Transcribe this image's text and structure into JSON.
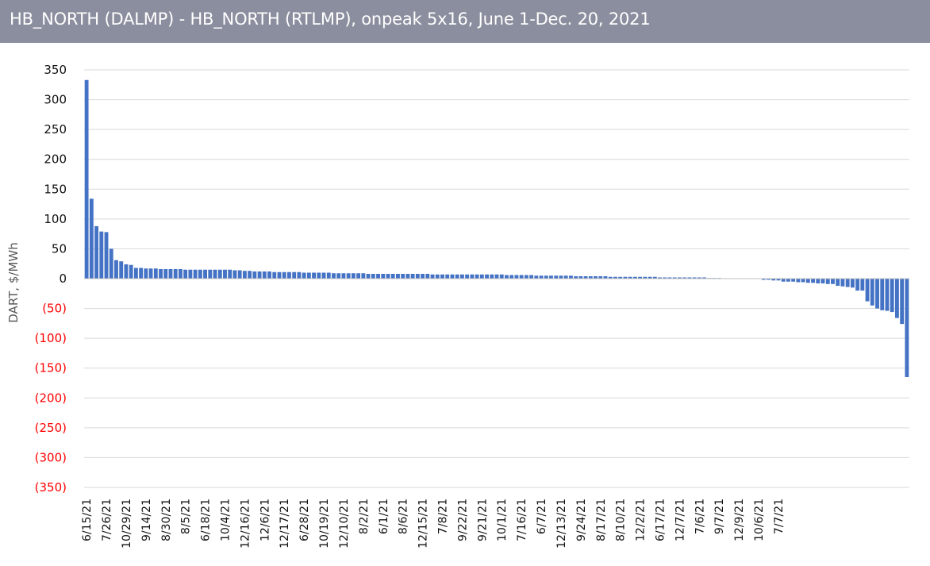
{
  "title": "HB_NORTH (DALMP) - HB_NORTH (RTLMP), onpeak 5x16, June 1-Dec. 20, 2021",
  "colors": {
    "title_bg": "#8b8e9e",
    "title_text": "#ffffff",
    "bar": "#4472c4",
    "negative_tick": "#ff0000",
    "positive_tick": "#111111",
    "grid": "#d9d9d9"
  },
  "chart_data": {
    "type": "bar",
    "title": "HB_NORTH (DALMP) - HB_NORTH (RTLMP), onpeak 5x16, June 1-Dec. 20, 2021",
    "ylabel": "DART, $/MWh",
    "xlabel": "",
    "ylim": [
      -350,
      350
    ],
    "grid": true,
    "legend": "none",
    "y_ticks": [
      350,
      300,
      250,
      200,
      150,
      100,
      50,
      0,
      -50,
      -100,
      -150,
      -200,
      -250,
      -300,
      -350
    ],
    "y_tick_labels": [
      "350",
      "300",
      "250",
      "200",
      "150",
      "100",
      "50",
      "0",
      "(50)",
      "(100)",
      "(150)",
      "(200)",
      "(250)",
      "(300)",
      "(350)"
    ],
    "x_tick_labels": [
      "6/15/21",
      "7/26/21",
      "10/29/21",
      "9/14/21",
      "8/30/21",
      "8/5/21",
      "6/18/21",
      "10/4/21",
      "12/16/21",
      "12/6/21",
      "12/17/21",
      "6/28/21",
      "10/19/21",
      "12/10/21",
      "8/2/21",
      "6/1/21",
      "8/6/21",
      "12/15/21",
      "7/8/21",
      "9/22/21",
      "9/21/21",
      "10/1/21",
      "7/16/21",
      "6/7/21",
      "12/13/21",
      "9/24/21",
      "8/17/21",
      "8/10/21",
      "12/2/21",
      "6/17/21",
      "12/7/21",
      "7/6/21",
      "9/7/21",
      "12/9/21",
      "10/6/21",
      "7/7/21"
    ],
    "x_tick_interval": 4,
    "values": [
      333,
      134,
      88,
      79,
      78,
      50,
      31,
      29,
      24,
      23,
      18,
      18,
      17,
      17,
      17,
      16,
      16,
      16,
      16,
      16,
      15,
      15,
      15,
      15,
      15,
      15,
      15,
      15,
      15,
      15,
      14,
      14,
      13,
      13,
      12,
      12,
      12,
      12,
      11,
      11,
      11,
      11,
      11,
      11,
      10,
      10,
      10,
      10,
      10,
      10,
      9,
      9,
      9,
      9,
      9,
      9,
      9,
      8,
      8,
      8,
      8,
      8,
      8,
      8,
      8,
      8,
      8,
      8,
      8,
      8,
      7,
      7,
      7,
      7,
      7,
      7,
      7,
      7,
      7,
      7,
      7,
      7,
      7,
      7,
      7,
      6,
      6,
      6,
      6,
      6,
      6,
      5,
      5,
      5,
      5,
      5,
      5,
      5,
      5,
      4,
      4,
      4,
      4,
      4,
      4,
      4,
      3,
      3,
      3,
      3,
      3,
      3,
      3,
      3,
      3,
      3,
      2,
      2,
      2,
      2,
      2,
      2,
      2,
      2,
      2,
      2,
      1,
      1,
      1,
      0,
      0,
      0,
      0,
      0,
      0,
      0,
      0,
      -2,
      -2,
      -3,
      -3,
      -5,
      -5,
      -5,
      -6,
      -6,
      -7,
      -7,
      -8,
      -8,
      -9,
      -9,
      -12,
      -13,
      -14,
      -15,
      -20,
      -20,
      -38,
      -45,
      -50,
      -53,
      -54,
      -56,
      -66,
      -76,
      -165
    ]
  }
}
